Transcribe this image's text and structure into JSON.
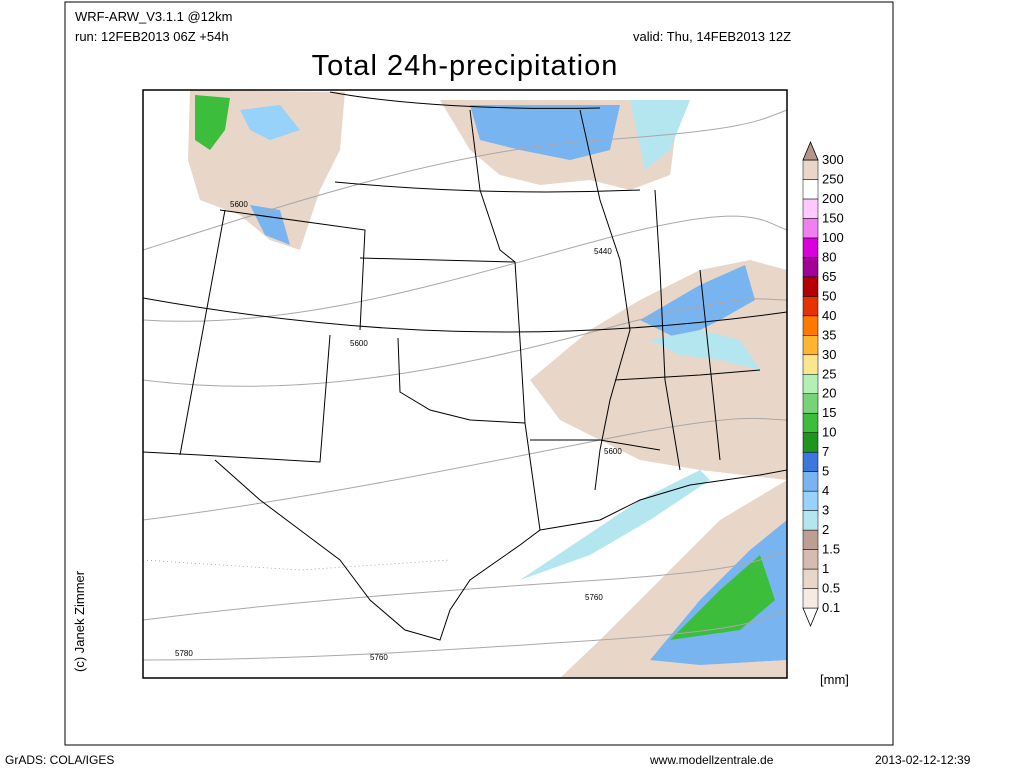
{
  "header": {
    "model": "WRF-ARW_V3.1.1 @12km",
    "run": "run: 12FEB2013 06Z +54h",
    "valid": "valid: Thu, 14FEB2013 12Z",
    "title": "Total 24h-precipitation"
  },
  "colorbar": {
    "labels": [
      0.1,
      0.5,
      1,
      1.5,
      2,
      3,
      4,
      5,
      7,
      10,
      15,
      20,
      25,
      30,
      35,
      40,
      50,
      65,
      80,
      100,
      150,
      200,
      250,
      300
    ],
    "colors": [
      "#ffffff",
      "#f5ebe1",
      "#e8d6c8",
      "#d6bcae",
      "#bc9e93",
      "#b4e6f0",
      "#96d2fa",
      "#78b4f0",
      "#3c78dc",
      "#1e961e",
      "#3cbe3c",
      "#78d278",
      "#b4f0b4",
      "#fae68c",
      "#ffb432",
      "#ff7800",
      "#e63200",
      "#b40000",
      "#a00096",
      "#dc00dc",
      "#f080f0",
      "#ffc8ff",
      "#ffffff",
      "#e8d6c8",
      "#b4968c"
    ],
    "unit": "[mm]"
  },
  "contour_labels": [
    "5600",
    "5440",
    "5600",
    "5600",
    "5760",
    "5780",
    "5760"
  ],
  "copyright": "(c) Janek Zimmer",
  "footer": {
    "left": "GrADS: COLA/IGES",
    "center": "www.modellzentrale.de",
    "right": "2013-02-12-12:39"
  }
}
